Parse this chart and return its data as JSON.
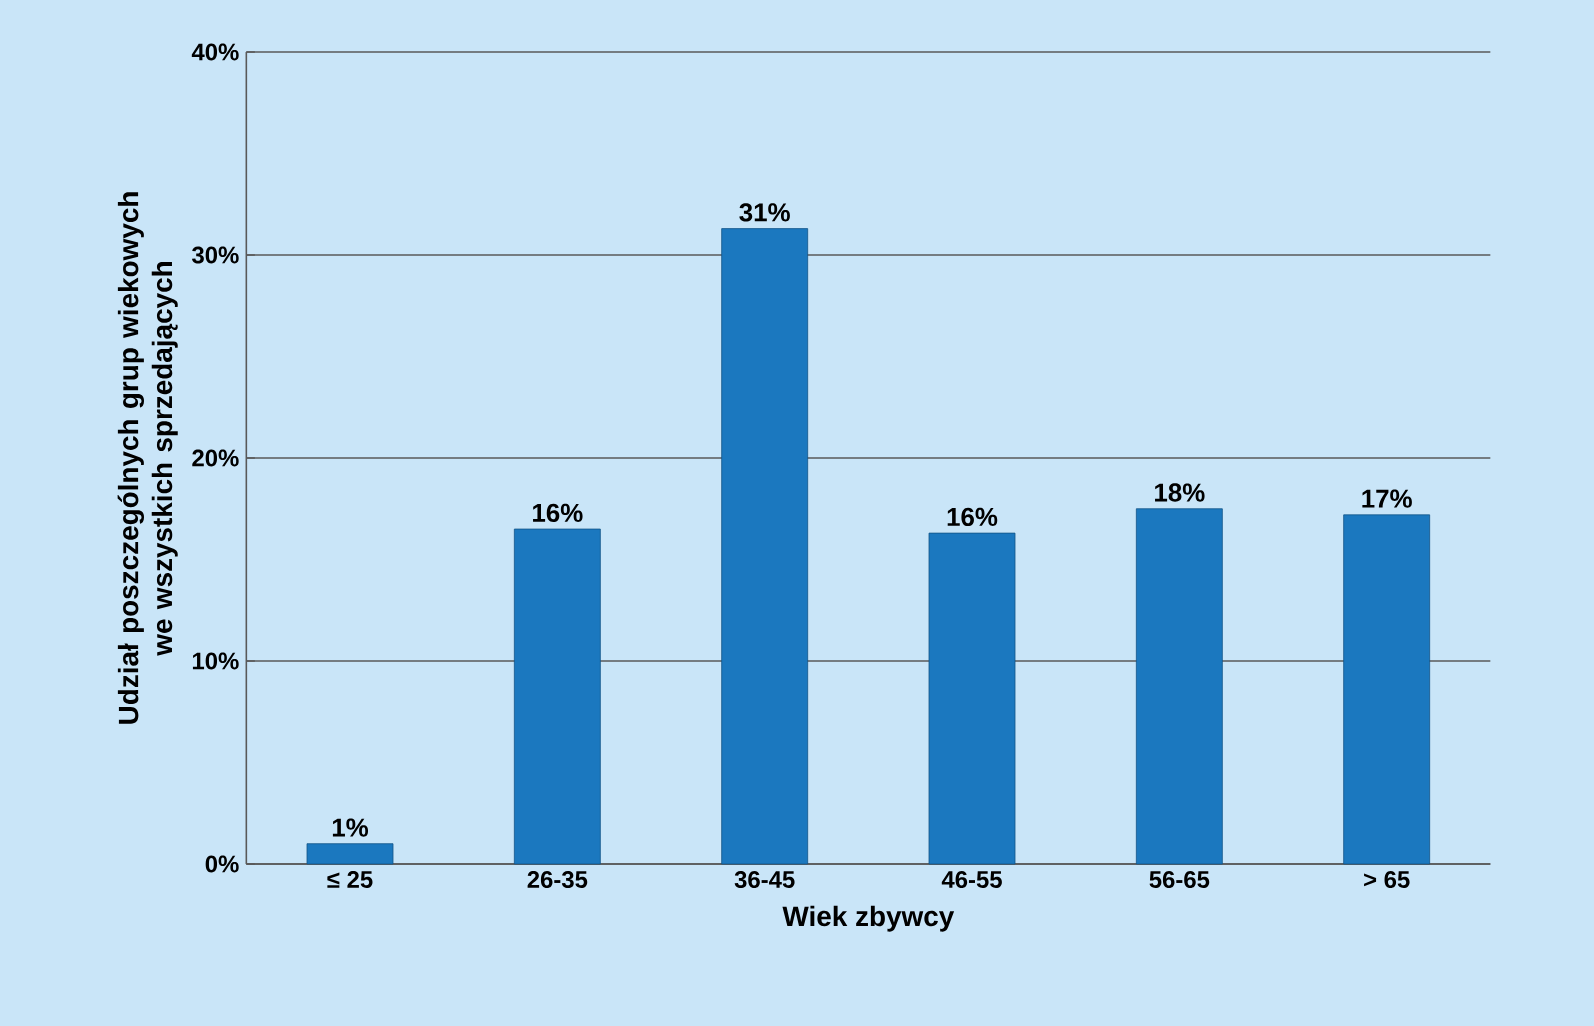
{
  "chart_data": {
    "type": "bar",
    "xlabel": "Wiek zbywcy",
    "ylabel": "Udział poszczególnych grup wiekowych we wszystkich sprzedających",
    "categories": [
      "≤ 25",
      "26-35",
      "36-45",
      "46-55",
      "56-65",
      "> 65"
    ],
    "values": [
      1,
      16.5,
      31.3,
      16.3,
      17.5,
      17.2
    ],
    "value_labels": [
      "1%",
      "16%",
      "31%",
      "16%",
      "18%",
      "17%"
    ],
    "color": "#1b78bf",
    "ylim": [
      0,
      40
    ],
    "yticks": [
      {
        "value": 0,
        "label": "0%"
      },
      {
        "value": 10,
        "label": "10%"
      },
      {
        "value": 20,
        "label": "20%"
      },
      {
        "value": 30,
        "label": "30%"
      },
      {
        "value": 40,
        "label": "40%"
      }
    ],
    "grid": "y"
  }
}
